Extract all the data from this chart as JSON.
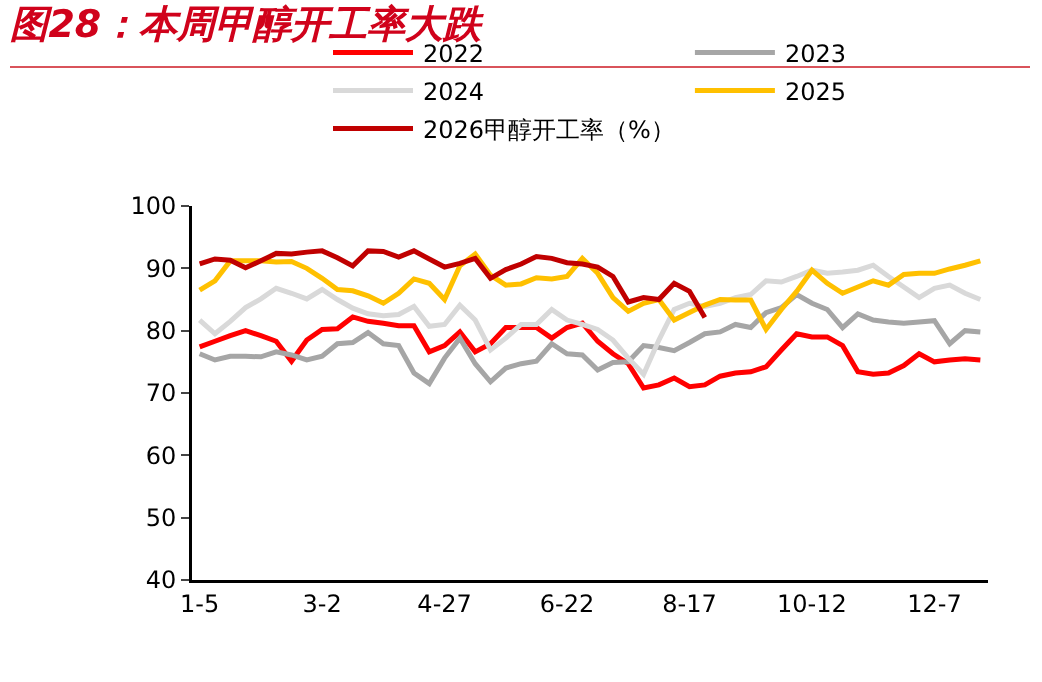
{
  "chart_data": {
    "type": "line",
    "title": "图28：本周甲醇开工率大跌",
    "categories": [
      "1-5",
      null,
      null,
      null,
      null,
      null,
      null,
      null,
      "3-2",
      null,
      null,
      null,
      null,
      null,
      null,
      null,
      "4-27",
      null,
      null,
      null,
      null,
      null,
      null,
      null,
      "6-22",
      null,
      null,
      null,
      null,
      null,
      null,
      null,
      "8-17",
      null,
      null,
      null,
      null,
      null,
      null,
      null,
      "10-12",
      null,
      null,
      null,
      null,
      null,
      null,
      null,
      "12-7",
      null,
      null,
      null
    ],
    "series": [
      {
        "name": "2022",
        "color": "#ff0000",
        "values": [
          77.4,
          78.3,
          79.2,
          80,
          79.2,
          78.3,
          75.1,
          78.5,
          80.2,
          80.3,
          82.2,
          81.5,
          81.2,
          80.8,
          80.8,
          76.6,
          77.6,
          79.8,
          76.6,
          77.9,
          80.5,
          80.5,
          80.5,
          78.8,
          80.5,
          81.2,
          78.3,
          76.3,
          74.7,
          70.8,
          71.3,
          72.4,
          71,
          71.3,
          72.7,
          73.2,
          73.4,
          74.2,
          76.9,
          79.5,
          79,
          79,
          77.6,
          73.4,
          73,
          73.2,
          74.4,
          76.3,
          75,
          75.3,
          75.5,
          75.3
        ]
      },
      {
        "name": "2023",
        "color": "#a6a6a6",
        "values": [
          76.3,
          75.3,
          75.9,
          75.9,
          75.8,
          76.6,
          76.1,
          75.3,
          75.9,
          77.9,
          78.1,
          79.7,
          77.9,
          77.6,
          73.2,
          71.5,
          75.6,
          78.8,
          74.7,
          71.8,
          74,
          74.7,
          75.1,
          77.9,
          76.3,
          76.1,
          73.7,
          74.9,
          75,
          77.6,
          77.3,
          76.8,
          78.1,
          79.5,
          79.8,
          81,
          80.5,
          82.9,
          83.7,
          85.8,
          84.4,
          83.4,
          80.5,
          82.7,
          81.7,
          81.4,
          81.2,
          81.4,
          81.6,
          77.9,
          80,
          79.8
        ]
      },
      {
        "name": "2024",
        "color": "#d9d9d9",
        "values": [
          81.7,
          79.5,
          81.5,
          83.7,
          85.1,
          86.8,
          86,
          85.1,
          86.6,
          85,
          83.6,
          82.7,
          82.4,
          82.6,
          83.9,
          80.7,
          81,
          84.1,
          81.7,
          76.9,
          78.8,
          81,
          81,
          83.4,
          81.7,
          81,
          80.2,
          78.5,
          75.6,
          73,
          78.5,
          83.4,
          84.4,
          83.9,
          84.4,
          85.3,
          85.8,
          88,
          87.8,
          88.7,
          89.7,
          89.2,
          89.4,
          89.7,
          90.5,
          88.7,
          87,
          85.3,
          86.8,
          87.3,
          86,
          85
        ]
      },
      {
        "name": "2025",
        "color": "#ffc000",
        "values": [
          86.5,
          88,
          91.2,
          91.2,
          91.2,
          91,
          91.1,
          90,
          88.4,
          86.6,
          86.4,
          85.6,
          84.4,
          86,
          88.3,
          87.6,
          85,
          90.4,
          92.3,
          88.9,
          87.3,
          87.5,
          88.5,
          88.3,
          88.7,
          91.6,
          89.2,
          85.3,
          83.1,
          84.4,
          85,
          81.7,
          82.9,
          84.1,
          85,
          84.9,
          84.9,
          80.2,
          83.4,
          86.3,
          89.7,
          87.6,
          86,
          87,
          88,
          87.3,
          89,
          89.2,
          89.2,
          89.9,
          90.5,
          91.2
        ]
      },
      {
        "name": "2026甲醇开工率（%）",
        "color": "#c00000",
        "values": [
          90.7,
          91.5,
          91.3,
          90.1,
          91.2,
          92.4,
          92.3,
          92.6,
          92.8,
          91.7,
          90.4,
          92.8,
          92.7,
          91.8,
          92.8,
          91.5,
          90.2,
          90.8,
          91.6,
          88.4,
          89.8,
          90.7,
          91.9,
          91.6,
          90.9,
          90.7,
          90.2,
          88.7,
          84.6,
          85.3,
          85,
          87.6,
          86.3,
          82.1,
          null,
          null,
          null,
          null,
          null,
          null,
          null,
          null,
          null,
          null,
          null,
          null,
          null,
          null,
          null,
          null,
          null,
          null
        ]
      }
    ],
    "ylim": [
      40,
      100
    ],
    "yticks": [
      40,
      50,
      60,
      70,
      80,
      90,
      100
    ],
    "grid": false,
    "legend": "top",
    "line_style": "solid",
    "marker": "none"
  }
}
